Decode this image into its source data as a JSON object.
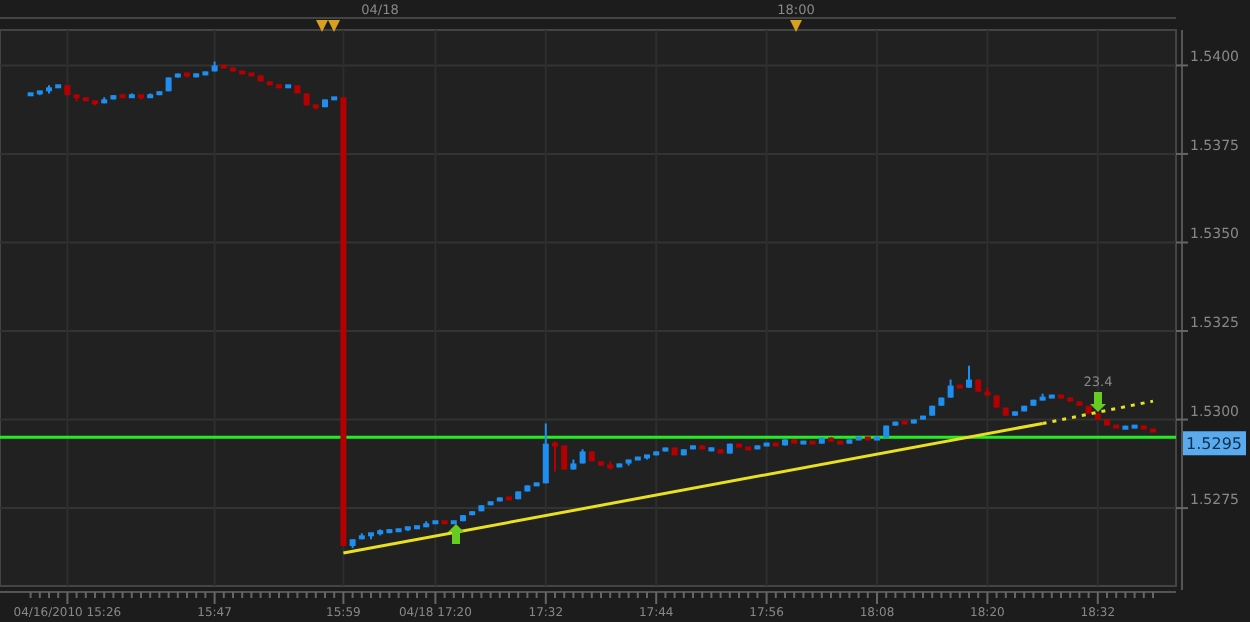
{
  "chart_data": {
    "type": "candlestick",
    "categories": [
      null,
      null,
      null,
      null,
      "04/16/2010 15:26",
      null,
      null,
      null,
      null,
      null,
      null,
      null,
      null,
      null,
      null,
      null,
      null,
      null,
      null,
      null,
      "15:47",
      null,
      null,
      null,
      null,
      null,
      null,
      null,
      null,
      null,
      null,
      null,
      null,
      null,
      "15:59",
      null,
      null,
      null,
      null,
      null,
      null,
      null,
      null,
      null,
      "04/18 17:20",
      null,
      null,
      null,
      null,
      null,
      null,
      null,
      null,
      null,
      null,
      null,
      "17:32",
      null,
      null,
      null,
      null,
      null,
      null,
      null,
      null,
      null,
      null,
      null,
      "17:44",
      null,
      null,
      null,
      null,
      null,
      null,
      null,
      null,
      null,
      null,
      null,
      "17:56",
      null,
      null,
      null,
      null,
      null,
      null,
      null,
      null,
      null,
      null,
      null,
      "18:08",
      null,
      null,
      null,
      null,
      null,
      null,
      null,
      null,
      null,
      null,
      null,
      "18:20",
      null,
      null,
      null,
      null,
      null,
      null,
      null,
      null,
      null,
      null,
      null,
      "18:32",
      null,
      null,
      null,
      null,
      null,
      null
    ],
    "ohlc": [
      [
        1.53916,
        1.53921,
        1.53916,
        1.53921
      ],
      [
        1.53921,
        1.53927,
        1.53916,
        1.53927
      ],
      [
        1.53927,
        1.53944,
        1.53921,
        1.53938
      ],
      [
        1.53938,
        1.53944,
        1.53938,
        1.53944
      ],
      [
        1.53944,
        1.53944,
        1.53916,
        1.53916
      ],
      [
        1.53916,
        1.53916,
        1.53899,
        1.5391
      ],
      [
        1.5391,
        1.5391,
        1.53899,
        1.53899
      ],
      [
        1.53899,
        1.53899,
        1.53887,
        1.53893
      ],
      [
        1.53893,
        1.5391,
        1.53893,
        1.53904
      ],
      [
        1.53904,
        1.53916,
        1.53904,
        1.53916
      ],
      [
        1.53916,
        1.53916,
        1.5391,
        1.5391
      ],
      [
        1.5391,
        1.53921,
        1.5391,
        1.53916
      ],
      [
        1.53916,
        1.53916,
        1.53904,
        1.5391
      ],
      [
        1.5391,
        1.53921,
        1.5391,
        1.53916
      ],
      [
        1.53916,
        1.53927,
        1.53916,
        1.53927
      ],
      [
        1.53927,
        1.53966,
        1.53927,
        1.53966
      ],
      [
        1.53966,
        1.53977,
        1.53966,
        1.53977
      ],
      [
        1.53977,
        1.53977,
        1.53966,
        1.53972
      ],
      [
        1.53972,
        1.53977,
        1.53966,
        1.53972
      ],
      [
        1.53972,
        1.53983,
        1.53972,
        1.53983
      ],
      [
        1.53983,
        1.54011,
        1.53983,
        1.54
      ],
      [
        1.54,
        1.54,
        1.53994,
        1.53994
      ],
      [
        1.53994,
        1.53994,
        1.53983,
        1.53983
      ],
      [
        1.53983,
        1.53983,
        1.53977,
        1.53977
      ],
      [
        1.53977,
        1.53977,
        1.53972,
        1.53972
      ],
      [
        1.53972,
        1.53972,
        1.53955,
        1.53955
      ],
      [
        1.53955,
        1.53955,
        1.53944,
        1.53944
      ],
      [
        1.53944,
        1.53944,
        1.53938,
        1.53938
      ],
      [
        1.53938,
        1.53944,
        1.53938,
        1.53944
      ],
      [
        1.53944,
        1.53944,
        1.53921,
        1.53921
      ],
      [
        1.53921,
        1.53921,
        1.53887,
        1.53887
      ],
      [
        1.53887,
        1.53887,
        1.53876,
        1.53882
      ],
      [
        1.53882,
        1.53904,
        1.53882,
        1.53904
      ],
      [
        1.53904,
        1.5391,
        1.53904,
        1.5391
      ],
      [
        1.5391,
        1.5391,
        1.52643,
        1.52643
      ],
      [
        1.52643,
        1.52662,
        1.52637,
        1.52662
      ],
      [
        1.52662,
        1.52679,
        1.52662,
        1.52673
      ],
      [
        1.52673,
        1.52679,
        1.52662,
        1.52679
      ],
      [
        1.52679,
        1.5269,
        1.52673,
        1.52685
      ],
      [
        1.52685,
        1.5269,
        1.52679,
        1.52685
      ],
      [
        1.52685,
        1.5269,
        1.52685,
        1.5269
      ],
      [
        1.5269,
        1.52696,
        1.52685,
        1.52696
      ],
      [
        1.52696,
        1.52696,
        1.5269,
        1.52696
      ],
      [
        1.52696,
        1.52713,
        1.52696,
        1.52707
      ],
      [
        1.52707,
        1.52713,
        1.52707,
        1.52713
      ],
      [
        1.52713,
        1.52713,
        1.52707,
        1.52707
      ],
      [
        1.52707,
        1.52713,
        1.52707,
        1.52713
      ],
      [
        1.52713,
        1.5273,
        1.52713,
        1.5273
      ],
      [
        1.5273,
        1.52741,
        1.5273,
        1.52741
      ],
      [
        1.52741,
        1.52758,
        1.52741,
        1.52758
      ],
      [
        1.52758,
        1.52769,
        1.52758,
        1.52769
      ],
      [
        1.52769,
        1.5278,
        1.52769,
        1.5278
      ],
      [
        1.5278,
        1.5278,
        1.52775,
        1.52775
      ],
      [
        1.52775,
        1.52797,
        1.52775,
        1.52797
      ],
      [
        1.52797,
        1.52814,
        1.52797,
        1.52814
      ],
      [
        1.52814,
        1.5282,
        1.52814,
        1.5282
      ],
      [
        1.5282,
        1.52989,
        1.5282,
        1.52932
      ],
      [
        1.52932,
        1.52938,
        1.52853,
        1.52927
      ],
      [
        1.52927,
        1.52927,
        1.52859,
        1.52859
      ],
      [
        1.52859,
        1.52887,
        1.52859,
        1.52876
      ],
      [
        1.52876,
        1.52916,
        1.52876,
        1.5291
      ],
      [
        1.5291,
        1.5291,
        1.52882,
        1.52882
      ],
      [
        1.52882,
        1.52882,
        1.5287,
        1.5287
      ],
      [
        1.5287,
        1.52882,
        1.52859,
        1.52865
      ],
      [
        1.52865,
        1.52876,
        1.52865,
        1.52876
      ],
      [
        1.52876,
        1.52887,
        1.5287,
        1.52887
      ],
      [
        1.52887,
        1.52893,
        1.52887,
        1.52893
      ],
      [
        1.52893,
        1.52899,
        1.52887,
        1.52899
      ],
      [
        1.52899,
        1.5291,
        1.52899,
        1.5291
      ],
      [
        1.5291,
        1.52921,
        1.5291,
        1.52921
      ],
      [
        1.52921,
        1.52921,
        1.52899,
        1.52899
      ],
      [
        1.52899,
        1.52916,
        1.52899,
        1.52916
      ],
      [
        1.52916,
        1.52927,
        1.52916,
        1.52927
      ],
      [
        1.52927,
        1.52927,
        1.52916,
        1.52916
      ],
      [
        1.52916,
        1.52921,
        1.5291,
        1.52916
      ],
      [
        1.52916,
        1.52916,
        1.52904,
        1.52904
      ],
      [
        1.52904,
        1.52932,
        1.52904,
        1.52932
      ],
      [
        1.52932,
        1.52932,
        1.52921,
        1.52921
      ],
      [
        1.52921,
        1.52921,
        1.52916,
        1.52916
      ],
      [
        1.52916,
        1.52927,
        1.52916,
        1.52927
      ],
      [
        1.52927,
        1.52932,
        1.52927,
        1.52932
      ],
      [
        1.52932,
        1.52932,
        1.52927,
        1.52927
      ],
      [
        1.52927,
        1.52944,
        1.52927,
        1.52944
      ],
      [
        1.52944,
        1.52944,
        1.52932,
        1.52932
      ],
      [
        1.52932,
        1.52938,
        1.52932,
        1.52938
      ],
      [
        1.52938,
        1.52938,
        1.52932,
        1.52932
      ],
      [
        1.52932,
        1.52949,
        1.52932,
        1.52949
      ],
      [
        1.52949,
        1.52949,
        1.52938,
        1.52938
      ],
      [
        1.52938,
        1.52938,
        1.52932,
        1.52932
      ],
      [
        1.52932,
        1.52944,
        1.52932,
        1.52944
      ],
      [
        1.52944,
        1.52949,
        1.52944,
        1.52949
      ],
      [
        1.52949,
        1.52949,
        1.52944,
        1.52944
      ],
      [
        1.52944,
        1.52949,
        1.52944,
        1.52949
      ],
      [
        1.52949,
        1.52983,
        1.52949,
        1.52983
      ],
      [
        1.52983,
        1.52994,
        1.52983,
        1.52994
      ],
      [
        1.52994,
        1.52994,
        1.52989,
        1.52989
      ],
      [
        1.52989,
        1.53,
        1.52989,
        1.53
      ],
      [
        1.53,
        1.53011,
        1.53,
        1.53011
      ],
      [
        1.53011,
        1.53039,
        1.53011,
        1.53039
      ],
      [
        1.53039,
        1.53062,
        1.53039,
        1.53062
      ],
      [
        1.53062,
        1.53113,
        1.53062,
        1.53096
      ],
      [
        1.53096,
        1.53096,
        1.5309,
        1.5309
      ],
      [
        1.5309,
        1.53152,
        1.5309,
        1.53113
      ],
      [
        1.53113,
        1.53113,
        1.53079,
        1.53079
      ],
      [
        1.53079,
        1.5309,
        1.53068,
        1.53068
      ],
      [
        1.53068,
        1.53068,
        1.53034,
        1.53034
      ],
      [
        1.53034,
        1.53034,
        1.53011,
        1.53011
      ],
      [
        1.53011,
        1.53023,
        1.53011,
        1.53023
      ],
      [
        1.53023,
        1.53039,
        1.53023,
        1.53039
      ],
      [
        1.53039,
        1.53056,
        1.53039,
        1.53056
      ],
      [
        1.53056,
        1.53073,
        1.53056,
        1.53062
      ],
      [
        1.53062,
        1.53068,
        1.53062,
        1.53068
      ],
      [
        1.53068,
        1.53068,
        1.53062,
        1.53062
      ],
      [
        1.53062,
        1.53062,
        1.53051,
        1.53051
      ],
      [
        1.53051,
        1.53051,
        1.53039,
        1.53039
      ],
      [
        1.53039,
        1.53039,
        1.53017,
        1.53017
      ],
      [
        1.53017,
        1.53017,
        1.53,
        1.53
      ],
      [
        1.53,
        1.53,
        1.52983,
        1.52983
      ],
      [
        1.52983,
        1.52983,
        1.52977,
        1.52977
      ],
      [
        1.52977,
        1.52983,
        1.52977,
        1.52977
      ],
      [
        1.52977,
        1.52983,
        1.52977,
        1.52983
      ],
      [
        1.52983,
        1.52983,
        1.52972,
        1.52972
      ],
      [
        1.52972,
        1.52972,
        1.52966,
        1.52966
      ]
    ],
    "colors": [
      "#1e8ff0",
      "#1e8ff0",
      "#1e8ff0",
      "#1e8ff0",
      "#b40000",
      "#b40000",
      "#b40000",
      "#b40000",
      "#1e8ff0",
      "#1e8ff0",
      "#b40000",
      "#1e8ff0",
      "#b40000",
      "#1e8ff0",
      "#1e8ff0",
      "#1e8ff0",
      "#1e8ff0",
      "#b40000",
      "#1e8ff0",
      "#1e8ff0",
      "#1e8ff0",
      "#b40000",
      "#b40000",
      "#b40000",
      "#b40000",
      "#b40000",
      "#b40000",
      "#b40000",
      "#1e8ff0",
      "#b40000",
      "#b40000",
      "#b40000",
      "#1e8ff0",
      "#1e8ff0",
      "#b40000",
      "#1e8ff0",
      "#1e8ff0",
      "#1e8ff0",
      "#1e8ff0",
      "#1e8ff0",
      "#1e8ff0",
      "#1e8ff0",
      "#1e8ff0",
      "#1e8ff0",
      "#1e8ff0",
      "#b40000",
      "#1e8ff0",
      "#1e8ff0",
      "#1e8ff0",
      "#1e8ff0",
      "#1e8ff0",
      "#1e8ff0",
      "#b40000",
      "#1e8ff0",
      "#1e8ff0",
      "#1e8ff0",
      "#1e8ff0",
      "#b40000",
      "#b40000",
      "#1e8ff0",
      "#1e8ff0",
      "#b40000",
      "#b40000",
      "#b40000",
      "#1e8ff0",
      "#1e8ff0",
      "#1e8ff0",
      "#1e8ff0",
      "#1e8ff0",
      "#1e8ff0",
      "#b40000",
      "#1e8ff0",
      "#1e8ff0",
      "#b40000",
      "#1e8ff0",
      "#b40000",
      "#1e8ff0",
      "#b40000",
      "#b40000",
      "#1e8ff0",
      "#1e8ff0",
      "#b40000",
      "#1e8ff0",
      "#b40000",
      "#1e8ff0",
      "#b40000",
      "#1e8ff0",
      "#b40000",
      "#b40000",
      "#1e8ff0",
      "#1e8ff0",
      "#b40000",
      "#1e8ff0",
      "#1e8ff0",
      "#1e8ff0",
      "#b40000",
      "#1e8ff0",
      "#1e8ff0",
      "#1e8ff0",
      "#1e8ff0",
      "#1e8ff0",
      "#b40000",
      "#1e8ff0",
      "#b40000",
      "#b40000",
      "#b40000",
      "#b40000",
      "#1e8ff0",
      "#1e8ff0",
      "#1e8ff0",
      "#1e8ff0",
      "#1e8ff0",
      "#b40000",
      "#b40000",
      "#b40000",
      "#b40000",
      "#b40000",
      "#b40000",
      "#b40000",
      "#1e8ff0",
      "#1e8ff0",
      "#b40000",
      "#b40000"
    ],
    "ylim": [
      1.5253,
      1.541
    ],
    "yticks": [
      {
        "value": 1.5275,
        "label": "1.5275"
      },
      {
        "value": 1.53,
        "label": "1.5300"
      },
      {
        "value": 1.5325,
        "label": "1.5325"
      },
      {
        "value": 1.535,
        "label": "1.5350"
      },
      {
        "value": 1.5375,
        "label": "1.5375"
      },
      {
        "value": 1.54,
        "label": "1.5400"
      }
    ],
    "grid": true,
    "ref_lines": [
      {
        "axis": "y",
        "value": 1.5295,
        "label": "1.5295",
        "color": "#22ee22"
      }
    ],
    "series": [
      {
        "type": "line",
        "color": "#e8e020",
        "line_style": "solid",
        "values": [
          null,
          null,
          null,
          null,
          null,
          null,
          null,
          null,
          null,
          null,
          null,
          null,
          null,
          null,
          null,
          null,
          null,
          null,
          null,
          null,
          null,
          null,
          null,
          null,
          null,
          null,
          null,
          null,
          null,
          null,
          null,
          null,
          null,
          null,
          1.52623,
          null,
          null,
          null,
          null,
          null,
          null,
          null,
          null,
          null,
          null,
          null,
          null,
          null,
          null,
          null,
          null,
          null,
          null,
          null,
          null,
          null,
          null,
          null,
          null,
          null,
          null,
          null,
          null,
          null,
          null,
          null,
          null,
          null,
          null,
          null,
          null,
          null,
          null,
          null,
          null,
          null,
          null,
          null,
          null,
          null,
          null,
          null,
          null,
          null,
          null,
          null,
          null,
          null,
          null,
          null,
          null,
          null,
          null,
          null,
          null,
          null,
          null,
          null,
          null,
          null,
          null,
          null,
          null,
          null,
          null,
          null,
          null,
          null,
          null,
          null,
          1.52989,
          null,
          null,
          null,
          null,
          null,
          null,
          null,
          null,
          null,
          null,
          null,
          null
        ]
      },
      {
        "type": "line",
        "color": "#e8e020",
        "line_style": "dotted",
        "values": [
          null,
          null,
          null,
          null,
          null,
          null,
          null,
          null,
          null,
          null,
          null,
          null,
          null,
          null,
          null,
          null,
          null,
          null,
          null,
          null,
          null,
          null,
          null,
          null,
          null,
          null,
          null,
          null,
          null,
          null,
          null,
          null,
          null,
          null,
          null,
          null,
          null,
          null,
          null,
          null,
          null,
          null,
          null,
          null,
          null,
          null,
          null,
          null,
          null,
          null,
          null,
          null,
          null,
          null,
          null,
          null,
          null,
          null,
          null,
          null,
          null,
          null,
          null,
          null,
          null,
          null,
          null,
          null,
          null,
          null,
          null,
          null,
          null,
          null,
          null,
          null,
          null,
          null,
          null,
          null,
          null,
          null,
          null,
          null,
          null,
          null,
          null,
          null,
          null,
          null,
          null,
          null,
          null,
          null,
          null,
          null,
          null,
          null,
          null,
          null,
          null,
          null,
          null,
          null,
          null,
          null,
          null,
          null,
          null,
          null,
          1.52989,
          null,
          null,
          null,
          null,
          null,
          null,
          null,
          null,
          null,
          null,
          null,
          1.53052
        ]
      }
    ],
    "annotations": [
      "23.4",
      "04/18",
      "18:00"
    ]
  }
}
